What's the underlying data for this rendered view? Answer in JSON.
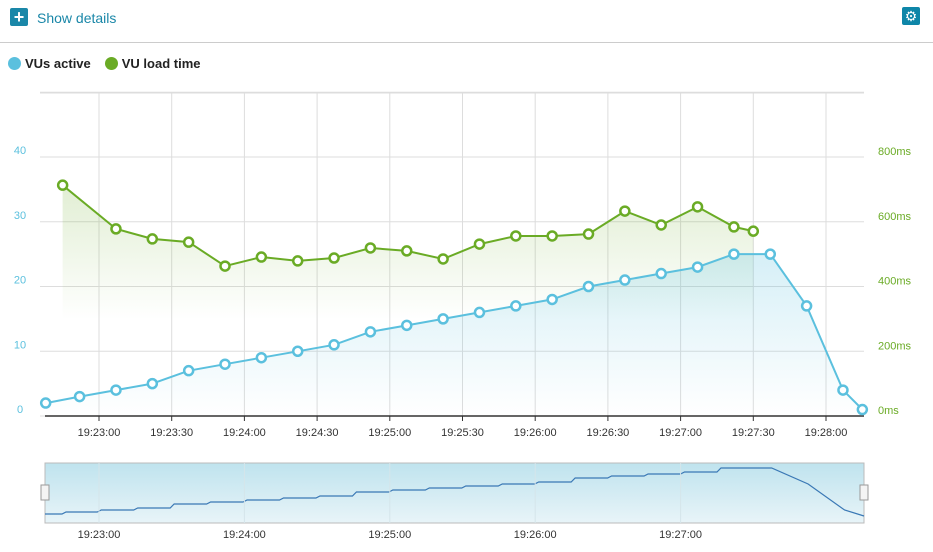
{
  "header": {
    "show_details_label": "Show details",
    "plus_icon": "plus-icon",
    "settings_icon": "gear-icon"
  },
  "colors": {
    "vus": "#5bc0de",
    "load": "#6aab25",
    "accent": "#1a87a8"
  },
  "chart_data": {
    "type": "line",
    "legend": [
      {
        "name": "VUs active",
        "color": "#5bc0de"
      },
      {
        "name": "VU load time",
        "color": "#6aab25"
      }
    ],
    "legend_placement": "top-left",
    "x_ticks": [
      "19:23:00",
      "19:23:30",
      "19:24:00",
      "19:24:30",
      "19:25:00",
      "19:25:30",
      "19:26:00",
      "19:26:30",
      "19:27:00",
      "19:27:30",
      "19:28:00"
    ],
    "y_left": {
      "ticks": [
        "0",
        "10",
        "20",
        "30",
        "40"
      ],
      "range": [
        0,
        40
      ]
    },
    "y_right": {
      "ticks": [
        "0ms",
        "200ms",
        "400ms",
        "600ms",
        "800ms"
      ],
      "range": [
        0,
        800
      ]
    },
    "series": [
      {
        "name": "VUs active",
        "axis": "left",
        "x": [
          "19:22:38",
          "19:22:52",
          "19:23:07",
          "19:23:22",
          "19:23:37",
          "19:23:52",
          "19:24:07",
          "19:24:22",
          "19:24:37",
          "19:24:52",
          "19:25:07",
          "19:25:22",
          "19:25:37",
          "19:25:52",
          "19:26:07",
          "19:26:22",
          "19:26:37",
          "19:26:52",
          "19:27:07",
          "19:27:22",
          "19:27:37",
          "19:27:52",
          "19:28:07",
          "19:28:15"
        ],
        "values": [
          2,
          3,
          4,
          5,
          7,
          8,
          9,
          10,
          11,
          13,
          14,
          15,
          16,
          17,
          18,
          20,
          21,
          22,
          23,
          25,
          25,
          17,
          4,
          1
        ]
      },
      {
        "name": "VU load time",
        "axis": "right",
        "unit": "ms",
        "x": [
          "19:22:45",
          "19:23:07",
          "19:23:22",
          "19:23:37",
          "19:23:52",
          "19:24:07",
          "19:24:22",
          "19:24:37",
          "19:24:52",
          "19:25:07",
          "19:25:22",
          "19:25:37",
          "19:25:52",
          "19:26:07",
          "19:26:22",
          "19:26:37",
          "19:26:52",
          "19:27:07",
          "19:27:22",
          "19:27:30"
        ],
        "values": [
          713,
          578,
          547,
          537,
          463,
          491,
          479,
          488,
          519,
          510,
          485,
          531,
          556,
          556,
          562,
          633,
          590,
          646,
          584,
          571
        ]
      }
    ],
    "navigator": {
      "x_ticks": [
        "19:23:00",
        "19:24:00",
        "19:25:00",
        "19:26:00",
        "19:27:00"
      ]
    }
  }
}
